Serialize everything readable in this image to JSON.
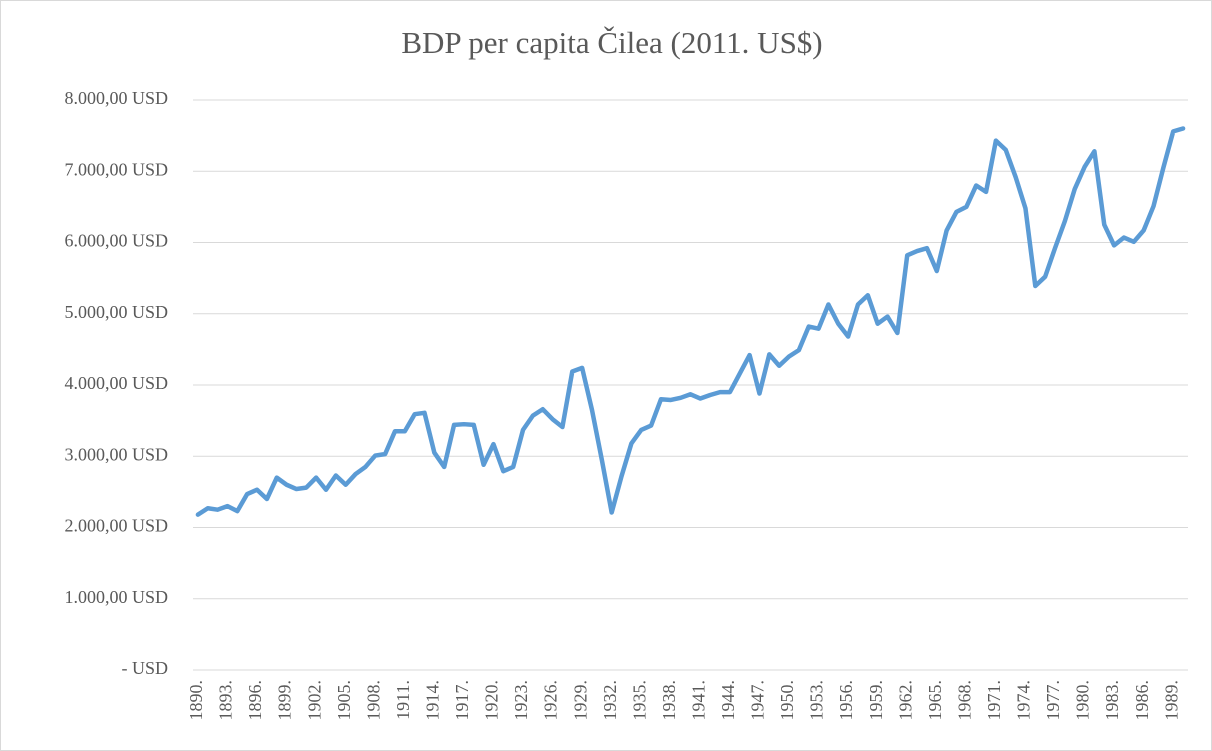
{
  "chart_data": {
    "type": "line",
    "title": "BDP per capita Čilea (2011. US$)",
    "categories": [
      "1890.",
      null,
      null,
      "1893.",
      null,
      null,
      "1896.",
      null,
      null,
      "1899.",
      null,
      null,
      "1902.",
      null,
      null,
      "1905.",
      null,
      null,
      "1908.",
      null,
      null,
      "1911.",
      null,
      null,
      "1914.",
      null,
      null,
      "1917.",
      null,
      null,
      "1920.",
      null,
      null,
      "1923.",
      null,
      null,
      "1926.",
      null,
      null,
      "1929.",
      null,
      null,
      "1932.",
      null,
      null,
      "1935.",
      null,
      null,
      "1938.",
      null,
      null,
      "1941.",
      null,
      null,
      "1944.",
      null,
      null,
      "1947.",
      null,
      null,
      "1950.",
      null,
      null,
      "1953.",
      null,
      null,
      "1956.",
      null,
      null,
      "1959.",
      null,
      null,
      "1962.",
      null,
      null,
      "1965.",
      null,
      null,
      "1968.",
      null,
      null,
      "1971.",
      null,
      null,
      "1974.",
      null,
      null,
      "1977.",
      null,
      null,
      "1980.",
      null,
      null,
      "1983.",
      null,
      null,
      "1986.",
      null,
      null,
      "1989.",
      null
    ],
    "series": [
      {
        "name": "BDP per capita",
        "color": "#5b9bd5",
        "values": [
          2180,
          2270,
          2250,
          2300,
          2230,
          2470,
          2530,
          2400,
          2700,
          2600,
          2540,
          2560,
          2700,
          2530,
          2730,
          2600,
          2750,
          2850,
          3010,
          3030,
          3350,
          3350,
          3590,
          3610,
          3050,
          2850,
          3440,
          3450,
          3440,
          2880,
          3170,
          2790,
          2850,
          3370,
          3570,
          3660,
          3520,
          3410,
          4190,
          4240,
          3650,
          2950,
          2210,
          2720,
          3180,
          3370,
          3430,
          3800,
          3790,
          3820,
          3870,
          3810,
          3860,
          3900,
          3900,
          4160,
          4420,
          3880,
          4430,
          4270,
          4400,
          4490,
          4820,
          4790,
          5130,
          4860,
          4680,
          5130,
          5260,
          4860,
          4960,
          4730,
          5820,
          5880,
          5920,
          5600,
          6170,
          6430,
          6500,
          6800,
          6710,
          7430,
          7300,
          6920,
          6480,
          5390,
          5520,
          5920,
          6300,
          6750,
          7060,
          7280,
          6250,
          5960,
          6070,
          6010,
          6170,
          6510,
          7050,
          7560,
          7600
        ]
      }
    ],
    "ylim": [
      0,
      8000
    ],
    "yticks": [
      {
        "value": 0,
        "label": "-   USD"
      },
      {
        "value": 1000,
        "label": "1.000,00 USD"
      },
      {
        "value": 2000,
        "label": "2.000,00 USD"
      },
      {
        "value": 3000,
        "label": "3.000,00 USD"
      },
      {
        "value": 4000,
        "label": "4.000,00 USD"
      },
      {
        "value": 5000,
        "label": "5.000,00 USD"
      },
      {
        "value": 6000,
        "label": "6.000,00 USD"
      },
      {
        "value": 7000,
        "label": "7.000,00 USD"
      },
      {
        "value": 8000,
        "label": "8.000,00 USD"
      }
    ],
    "grid": true
  }
}
